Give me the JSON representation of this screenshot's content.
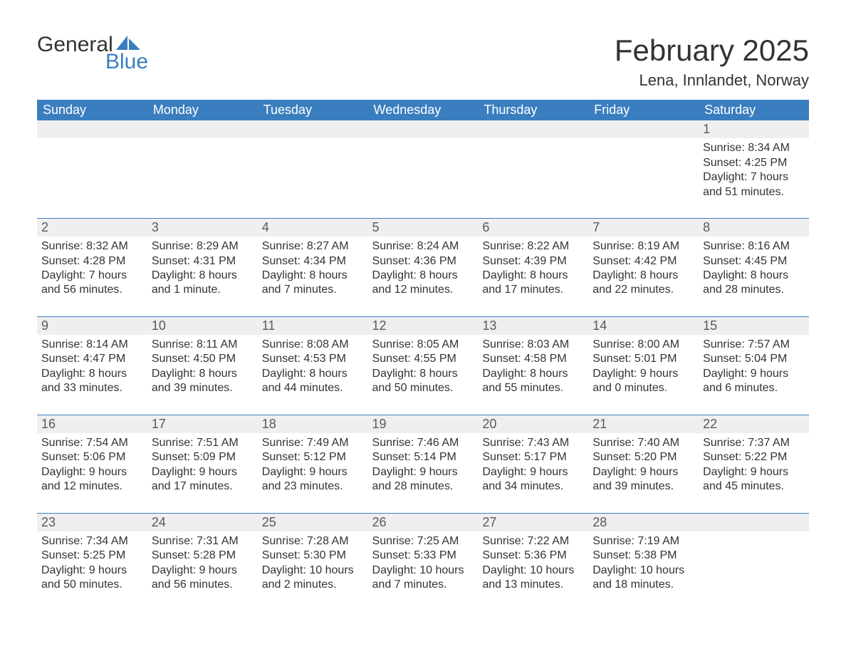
{
  "logo": {
    "word1": "General",
    "word2": "Blue"
  },
  "title": "February 2025",
  "location": "Lena, Innlandet, Norway",
  "colors": {
    "header_bg": "#3b7ebf",
    "header_text": "#ffffff",
    "daynum_bg": "#efefef",
    "rule": "#3b7ebf",
    "text": "#333333",
    "logo_blue": "#3b7ebf"
  },
  "layout": {
    "columns": 7,
    "rows": 5,
    "fonts": {
      "title_pt": 42,
      "location_pt": 22,
      "header_pt": 18,
      "daynum_pt": 18,
      "body_pt": 16
    }
  },
  "day_headers": [
    "Sunday",
    "Monday",
    "Tuesday",
    "Wednesday",
    "Thursday",
    "Friday",
    "Saturday"
  ],
  "weeks": [
    [
      null,
      null,
      null,
      null,
      null,
      null,
      {
        "n": "1",
        "sunrise": "Sunrise: 8:34 AM",
        "sunset": "Sunset: 4:25 PM",
        "day1": "Daylight: 7 hours",
        "day2": "and 51 minutes."
      }
    ],
    [
      {
        "n": "2",
        "sunrise": "Sunrise: 8:32 AM",
        "sunset": "Sunset: 4:28 PM",
        "day1": "Daylight: 7 hours",
        "day2": "and 56 minutes."
      },
      {
        "n": "3",
        "sunrise": "Sunrise: 8:29 AM",
        "sunset": "Sunset: 4:31 PM",
        "day1": "Daylight: 8 hours",
        "day2": "and 1 minute."
      },
      {
        "n": "4",
        "sunrise": "Sunrise: 8:27 AM",
        "sunset": "Sunset: 4:34 PM",
        "day1": "Daylight: 8 hours",
        "day2": "and 7 minutes."
      },
      {
        "n": "5",
        "sunrise": "Sunrise: 8:24 AM",
        "sunset": "Sunset: 4:36 PM",
        "day1": "Daylight: 8 hours",
        "day2": "and 12 minutes."
      },
      {
        "n": "6",
        "sunrise": "Sunrise: 8:22 AM",
        "sunset": "Sunset: 4:39 PM",
        "day1": "Daylight: 8 hours",
        "day2": "and 17 minutes."
      },
      {
        "n": "7",
        "sunrise": "Sunrise: 8:19 AM",
        "sunset": "Sunset: 4:42 PM",
        "day1": "Daylight: 8 hours",
        "day2": "and 22 minutes."
      },
      {
        "n": "8",
        "sunrise": "Sunrise: 8:16 AM",
        "sunset": "Sunset: 4:45 PM",
        "day1": "Daylight: 8 hours",
        "day2": "and 28 minutes."
      }
    ],
    [
      {
        "n": "9",
        "sunrise": "Sunrise: 8:14 AM",
        "sunset": "Sunset: 4:47 PM",
        "day1": "Daylight: 8 hours",
        "day2": "and 33 minutes."
      },
      {
        "n": "10",
        "sunrise": "Sunrise: 8:11 AM",
        "sunset": "Sunset: 4:50 PM",
        "day1": "Daylight: 8 hours",
        "day2": "and 39 minutes."
      },
      {
        "n": "11",
        "sunrise": "Sunrise: 8:08 AM",
        "sunset": "Sunset: 4:53 PM",
        "day1": "Daylight: 8 hours",
        "day2": "and 44 minutes."
      },
      {
        "n": "12",
        "sunrise": "Sunrise: 8:05 AM",
        "sunset": "Sunset: 4:55 PM",
        "day1": "Daylight: 8 hours",
        "day2": "and 50 minutes."
      },
      {
        "n": "13",
        "sunrise": "Sunrise: 8:03 AM",
        "sunset": "Sunset: 4:58 PM",
        "day1": "Daylight: 8 hours",
        "day2": "and 55 minutes."
      },
      {
        "n": "14",
        "sunrise": "Sunrise: 8:00 AM",
        "sunset": "Sunset: 5:01 PM",
        "day1": "Daylight: 9 hours",
        "day2": "and 0 minutes."
      },
      {
        "n": "15",
        "sunrise": "Sunrise: 7:57 AM",
        "sunset": "Sunset: 5:04 PM",
        "day1": "Daylight: 9 hours",
        "day2": "and 6 minutes."
      }
    ],
    [
      {
        "n": "16",
        "sunrise": "Sunrise: 7:54 AM",
        "sunset": "Sunset: 5:06 PM",
        "day1": "Daylight: 9 hours",
        "day2": "and 12 minutes."
      },
      {
        "n": "17",
        "sunrise": "Sunrise: 7:51 AM",
        "sunset": "Sunset: 5:09 PM",
        "day1": "Daylight: 9 hours",
        "day2": "and 17 minutes."
      },
      {
        "n": "18",
        "sunrise": "Sunrise: 7:49 AM",
        "sunset": "Sunset: 5:12 PM",
        "day1": "Daylight: 9 hours",
        "day2": "and 23 minutes."
      },
      {
        "n": "19",
        "sunrise": "Sunrise: 7:46 AM",
        "sunset": "Sunset: 5:14 PM",
        "day1": "Daylight: 9 hours",
        "day2": "and 28 minutes."
      },
      {
        "n": "20",
        "sunrise": "Sunrise: 7:43 AM",
        "sunset": "Sunset: 5:17 PM",
        "day1": "Daylight: 9 hours",
        "day2": "and 34 minutes."
      },
      {
        "n": "21",
        "sunrise": "Sunrise: 7:40 AM",
        "sunset": "Sunset: 5:20 PM",
        "day1": "Daylight: 9 hours",
        "day2": "and 39 minutes."
      },
      {
        "n": "22",
        "sunrise": "Sunrise: 7:37 AM",
        "sunset": "Sunset: 5:22 PM",
        "day1": "Daylight: 9 hours",
        "day2": "and 45 minutes."
      }
    ],
    [
      {
        "n": "23",
        "sunrise": "Sunrise: 7:34 AM",
        "sunset": "Sunset: 5:25 PM",
        "day1": "Daylight: 9 hours",
        "day2": "and 50 minutes."
      },
      {
        "n": "24",
        "sunrise": "Sunrise: 7:31 AM",
        "sunset": "Sunset: 5:28 PM",
        "day1": "Daylight: 9 hours",
        "day2": "and 56 minutes."
      },
      {
        "n": "25",
        "sunrise": "Sunrise: 7:28 AM",
        "sunset": "Sunset: 5:30 PM",
        "day1": "Daylight: 10 hours",
        "day2": "and 2 minutes."
      },
      {
        "n": "26",
        "sunrise": "Sunrise: 7:25 AM",
        "sunset": "Sunset: 5:33 PM",
        "day1": "Daylight: 10 hours",
        "day2": "and 7 minutes."
      },
      {
        "n": "27",
        "sunrise": "Sunrise: 7:22 AM",
        "sunset": "Sunset: 5:36 PM",
        "day1": "Daylight: 10 hours",
        "day2": "and 13 minutes."
      },
      {
        "n": "28",
        "sunrise": "Sunrise: 7:19 AM",
        "sunset": "Sunset: 5:38 PM",
        "day1": "Daylight: 10 hours",
        "day2": "and 18 minutes."
      },
      null
    ]
  ]
}
